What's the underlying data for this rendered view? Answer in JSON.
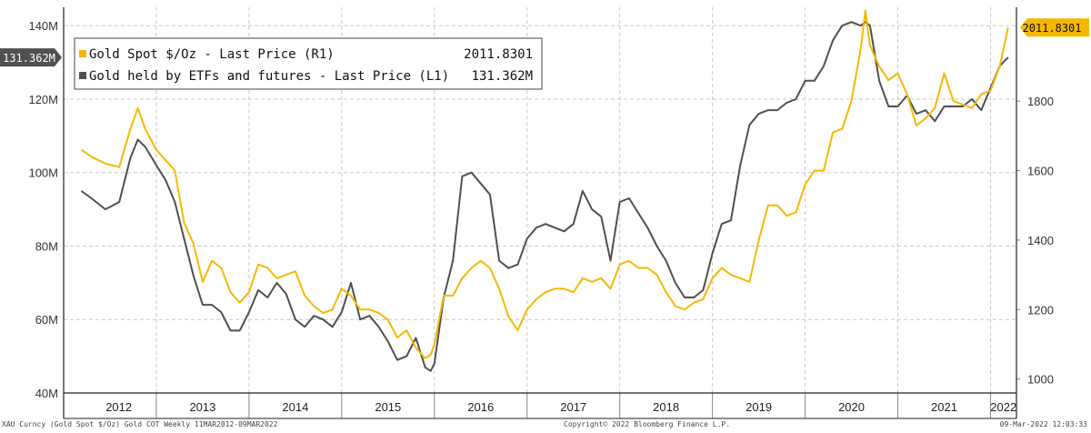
{
  "chart_data": {
    "type": "line",
    "title": "",
    "x_range": [
      "11MAR2012",
      "09MAR2022"
    ],
    "x_year_labels": [
      "2012",
      "2013",
      "2014",
      "2015",
      "2016",
      "2017",
      "2018",
      "2019",
      "2020",
      "2021",
      "2022"
    ],
    "y_left": {
      "range": [
        40,
        145
      ],
      "ticks": [
        40,
        60,
        80,
        100,
        120,
        140
      ],
      "tick_labels": [
        "40M",
        "60M",
        "80M",
        "100M",
        "120M",
        "140M"
      ],
      "unit": "M"
    },
    "y_right": {
      "range": [
        960,
        2070
      ],
      "ticks": [
        1000,
        1200,
        1400,
        1600,
        1800
      ],
      "tick_labels": [
        "1000",
        "1200",
        "1400",
        "1600",
        "1800"
      ]
    },
    "legend": {
      "position": "top-left",
      "entries": [
        {
          "label": "Gold Spot $/Oz - Last Price (R1)",
          "value": "2011.8301"
        },
        {
          "label": "Gold held by ETFs and futures - Last Price (L1)",
          "value": "131.362M"
        }
      ]
    },
    "tags": {
      "right": "2011.8301",
      "left": "131.362M"
    },
    "series": [
      {
        "name": "Gold Spot $/Oz - Last Price (R1)",
        "axis": "right",
        "color": "#f5b800",
        "x": [
          2012.19,
          2012.3,
          2012.45,
          2012.6,
          2012.72,
          2012.8,
          2012.88,
          2013.0,
          2013.1,
          2013.2,
          2013.3,
          2013.4,
          2013.5,
          2013.6,
          2013.7,
          2013.8,
          2013.9,
          2014.0,
          2014.1,
          2014.2,
          2014.3,
          2014.4,
          2014.5,
          2014.6,
          2014.7,
          2014.8,
          2014.9,
          2015.0,
          2015.1,
          2015.2,
          2015.3,
          2015.4,
          2015.5,
          2015.6,
          2015.7,
          2015.8,
          2015.9,
          2015.96,
          2016.0,
          2016.1,
          2016.2,
          2016.3,
          2016.4,
          2016.5,
          2016.6,
          2016.7,
          2016.8,
          2016.9,
          2017.0,
          2017.1,
          2017.2,
          2017.3,
          2017.4,
          2017.5,
          2017.6,
          2017.7,
          2017.8,
          2017.9,
          2018.0,
          2018.1,
          2018.2,
          2018.3,
          2018.4,
          2018.5,
          2018.6,
          2018.7,
          2018.8,
          2018.9,
          2019.0,
          2019.1,
          2019.2,
          2019.3,
          2019.4,
          2019.5,
          2019.6,
          2019.7,
          2019.8,
          2019.9,
          2020.0,
          2020.1,
          2020.2,
          2020.3,
          2020.4,
          2020.5,
          2020.6,
          2020.65,
          2020.7,
          2020.8,
          2020.9,
          2021.0,
          2021.1,
          2021.2,
          2021.3,
          2021.4,
          2021.5,
          2021.6,
          2021.7,
          2021.8,
          2021.9,
          2022.0,
          2022.1,
          2022.19
        ],
        "values": [
          1660,
          1640,
          1620,
          1610,
          1720,
          1780,
          1720,
          1660,
          1630,
          1600,
          1450,
          1390,
          1280,
          1340,
          1320,
          1250,
          1220,
          1250,
          1330,
          1320,
          1290,
          1300,
          1310,
          1240,
          1210,
          1190,
          1200,
          1260,
          1240,
          1200,
          1200,
          1190,
          1170,
          1120,
          1140,
          1090,
          1060,
          1070,
          1100,
          1240,
          1240,
          1290,
          1320,
          1340,
          1320,
          1260,
          1180,
          1140,
          1200,
          1230,
          1250,
          1260,
          1260,
          1250,
          1290,
          1280,
          1290,
          1260,
          1330,
          1340,
          1320,
          1320,
          1300,
          1250,
          1210,
          1200,
          1220,
          1230,
          1290,
          1320,
          1300,
          1290,
          1280,
          1400,
          1500,
          1500,
          1470,
          1480,
          1560,
          1600,
          1600,
          1710,
          1720,
          1800,
          1950,
          2060,
          1960,
          1900,
          1860,
          1880,
          1820,
          1730,
          1750,
          1780,
          1880,
          1800,
          1790,
          1780,
          1820,
          1830,
          1900,
          2011.83
        ]
      },
      {
        "name": "Gold held by ETFs and futures - Last Price (L1)",
        "axis": "left",
        "color": "#505050",
        "x": [
          2012.19,
          2012.3,
          2012.45,
          2012.6,
          2012.72,
          2012.8,
          2012.88,
          2013.0,
          2013.1,
          2013.2,
          2013.3,
          2013.4,
          2013.5,
          2013.6,
          2013.7,
          2013.8,
          2013.9,
          2014.0,
          2014.1,
          2014.2,
          2014.3,
          2014.4,
          2014.5,
          2014.6,
          2014.7,
          2014.8,
          2014.9,
          2015.0,
          2015.1,
          2015.2,
          2015.3,
          2015.4,
          2015.5,
          2015.6,
          2015.7,
          2015.8,
          2015.9,
          2015.96,
          2016.0,
          2016.1,
          2016.2,
          2016.3,
          2016.4,
          2016.5,
          2016.6,
          2016.7,
          2016.8,
          2016.9,
          2017.0,
          2017.1,
          2017.2,
          2017.3,
          2017.4,
          2017.5,
          2017.6,
          2017.7,
          2017.8,
          2017.9,
          2018.0,
          2018.1,
          2018.2,
          2018.3,
          2018.4,
          2018.5,
          2018.6,
          2018.7,
          2018.8,
          2018.9,
          2019.0,
          2019.1,
          2019.2,
          2019.3,
          2019.4,
          2019.5,
          2019.6,
          2019.7,
          2019.8,
          2019.9,
          2020.0,
          2020.1,
          2020.2,
          2020.3,
          2020.4,
          2020.5,
          2020.6,
          2020.65,
          2020.7,
          2020.8,
          2020.9,
          2021.0,
          2021.1,
          2021.2,
          2021.3,
          2021.4,
          2021.5,
          2021.6,
          2021.7,
          2021.8,
          2021.9,
          2022.0,
          2022.1,
          2022.19
        ],
        "values": [
          95,
          93,
          90,
          92,
          104,
          109,
          107,
          102,
          98,
          92,
          82,
          72,
          64,
          64,
          62,
          57,
          57,
          62,
          68,
          66,
          70,
          67,
          60,
          58,
          61,
          60,
          58,
          62,
          70,
          60,
          61,
          58,
          54,
          49,
          50,
          55,
          47,
          46,
          48,
          66,
          76,
          99,
          100,
          97,
          94,
          76,
          74,
          75,
          82,
          85,
          86,
          85,
          84,
          86,
          95,
          90,
          88,
          76,
          92,
          93,
          89,
          85,
          80,
          76,
          70,
          66,
          66,
          68,
          78,
          86,
          87,
          102,
          113,
          116,
          117,
          117,
          119,
          120,
          125,
          125,
          129,
          136,
          140,
          141,
          140,
          141,
          140,
          125,
          118,
          118,
          121,
          116,
          117,
          114,
          118,
          118,
          118,
          120,
          117,
          123,
          129,
          131.362
        ]
      }
    ]
  },
  "footer": {
    "left": "XAU Curncy (Gold Spot  $/Oz) Gold COT  Weekly 11MAR2012-09MAR2022",
    "center": "Copyright© 2022 Bloomberg Finance L.P.",
    "right": "09-Mar-2022 12:03:33"
  },
  "colors": {
    "gold": "#f5b800",
    "etf": "#505050",
    "grid": "#c8c8c8",
    "axis": "#222222"
  }
}
